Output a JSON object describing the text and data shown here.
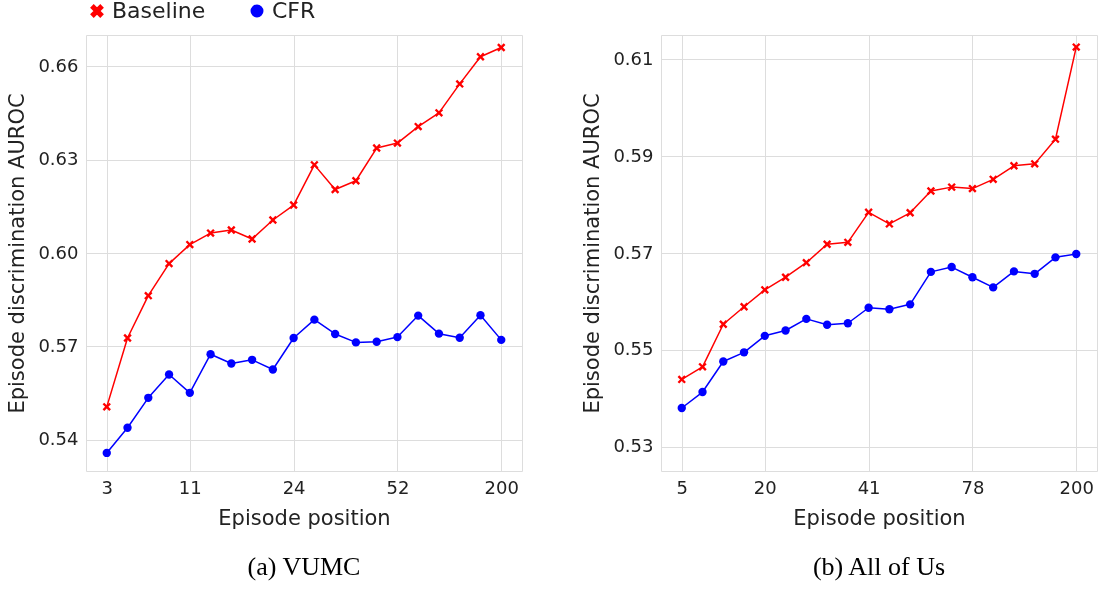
{
  "chart_data": [
    {
      "type": "line",
      "title": "(a) VUMC",
      "xlabel": "Episode position",
      "ylabel": "Episode discrimination AUROC",
      "categories": [
        "3",
        null,
        null,
        null,
        "11",
        null,
        null,
        null,
        null,
        "24",
        null,
        null,
        null,
        null,
        "52",
        null,
        null,
        null,
        null,
        "200"
      ],
      "ylim": [
        0.53,
        0.67
      ],
      "yticks": [
        0.54,
        0.57,
        {
          "value": 0.6,
          "label": "0.60"
        },
        0.63,
        0.66
      ],
      "grid": true,
      "legend": "top",
      "series": [
        {
          "name": "Baseline",
          "color": "#ff0000",
          "marker": "cross",
          "values": [
            0.5506,
            0.5727,
            0.5863,
            0.5966,
            0.6027,
            0.6064,
            0.6074,
            0.6045,
            0.6106,
            0.6154,
            0.6283,
            0.6204,
            0.6232,
            0.6337,
            0.6353,
            0.6406,
            0.645,
            0.6543,
            0.663,
            0.666
          ]
        },
        {
          "name": "CFR",
          "color": "#0000ff",
          "marker": "circle",
          "values": [
            0.5358,
            0.5439,
            0.5535,
            0.561,
            0.5551,
            0.5675,
            0.5645,
            0.5657,
            0.5626,
            0.5727,
            0.5786,
            0.574,
            0.5713,
            0.5715,
            0.573,
            0.5799,
            0.5741,
            0.5728,
            0.58,
            0.5721
          ]
        }
      ]
    },
    {
      "type": "line",
      "title": "(b) All of Us",
      "xlabel": "Episode position",
      "ylabel": "Episode discrimination AUROC",
      "categories": [
        "5",
        null,
        null,
        null,
        "20",
        null,
        null,
        null,
        null,
        "41",
        null,
        null,
        null,
        null,
        "78",
        null,
        null,
        null,
        null,
        "200"
      ],
      "ylim": [
        0.525,
        0.615
      ],
      "yticks": [
        0.53,
        0.55,
        0.57,
        0.59,
        0.61
      ],
      "grid": true,
      "legend": "top",
      "series": [
        {
          "name": "Baseline",
          "color": "#ff0000",
          "marker": "cross",
          "values": [
            0.5439,
            0.5465,
            0.5553,
            0.5589,
            0.5624,
            0.565,
            0.568,
            0.5718,
            0.5722,
            0.5784,
            0.576,
            0.5783,
            0.5828,
            0.5836,
            0.5833,
            0.5852,
            0.588,
            0.5884,
            0.5935,
            0.6125
          ]
        },
        {
          "name": "CFR",
          "color": "#0000ff",
          "marker": "circle",
          "values": [
            0.538,
            0.5413,
            0.5476,
            0.5495,
            0.5529,
            0.554,
            0.5564,
            0.5552,
            0.5555,
            0.5587,
            0.5584,
            0.5594,
            0.5661,
            0.5671,
            0.565,
            0.5629,
            0.5662,
            0.5657,
            0.5691,
            0.5698
          ]
        }
      ]
    }
  ]
}
